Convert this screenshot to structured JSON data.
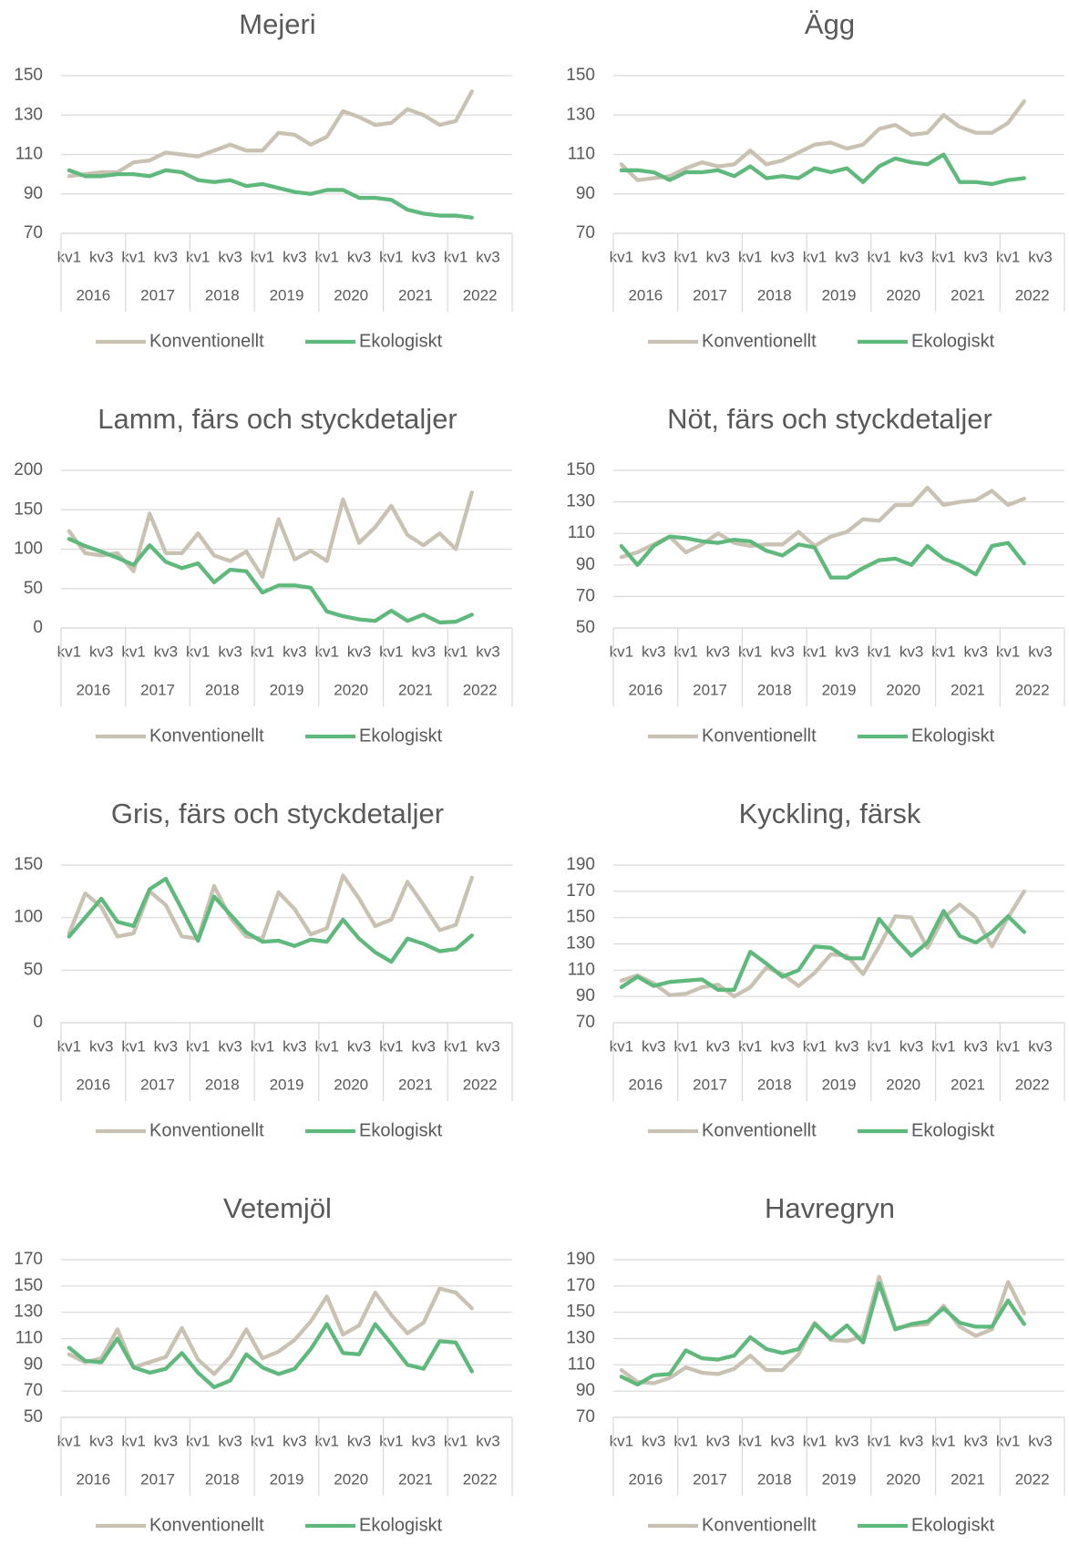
{
  "chart_data": [
    {
      "type": "line",
      "title": "Mejeri",
      "legend": "bottom",
      "grid": true,
      "ylim": [
        70,
        150
      ],
      "yticks": [
        70,
        90,
        110,
        130,
        150
      ],
      "categories": [
        "kv1",
        null,
        "kv3",
        null,
        "kv1",
        null,
        "kv3",
        null,
        "kv1",
        null,
        "kv3",
        null,
        "kv1",
        null,
        "kv3",
        null,
        "kv1",
        null,
        "kv3",
        null,
        "kv1",
        null,
        "kv3",
        null,
        "kv1",
        null,
        "kv3",
        null
      ],
      "groups": [
        "2016",
        "2017",
        "2018",
        "2019",
        "2020",
        "2021",
        "2022"
      ],
      "series": [
        {
          "name": "Konventionellt",
          "color": "#c9c2b2",
          "values": [
            99,
            100,
            101,
            101,
            106,
            107,
            111,
            110,
            109,
            112,
            115,
            112,
            112,
            121,
            120,
            115,
            119,
            132,
            129,
            125,
            126,
            133,
            130,
            125,
            127,
            142,
            null,
            null
          ]
        },
        {
          "name": "Ekologiskt",
          "color": "#5fb97c",
          "values": [
            102,
            99,
            99,
            100,
            100,
            99,
            102,
            101,
            97,
            96,
            97,
            94,
            95,
            93,
            91,
            90,
            92,
            92,
            88,
            88,
            87,
            82,
            80,
            79,
            79,
            78,
            null,
            null
          ]
        }
      ]
    },
    {
      "type": "line",
      "title": "Ägg",
      "legend": "bottom",
      "grid": true,
      "ylim": [
        70,
        150
      ],
      "yticks": [
        70,
        90,
        110,
        130,
        150
      ],
      "categories": [
        "kv1",
        null,
        "kv3",
        null,
        "kv1",
        null,
        "kv3",
        null,
        "kv1",
        null,
        "kv3",
        null,
        "kv1",
        null,
        "kv3",
        null,
        "kv1",
        null,
        "kv3",
        null,
        "kv1",
        null,
        "kv3",
        null,
        "kv1",
        null,
        "kv3",
        null
      ],
      "groups": [
        "2016",
        "2017",
        "2018",
        "2019",
        "2020",
        "2021",
        "2022"
      ],
      "series": [
        {
          "name": "Konventionellt",
          "color": "#c9c2b2",
          "values": [
            105,
            97,
            98,
            99,
            103,
            106,
            104,
            105,
            112,
            105,
            107,
            111,
            115,
            116,
            113,
            115,
            123,
            125,
            120,
            121,
            130,
            124,
            121,
            121,
            126,
            137,
            null,
            null
          ]
        },
        {
          "name": "Ekologiskt",
          "color": "#5fb97c",
          "values": [
            102,
            102,
            101,
            97,
            101,
            101,
            102,
            99,
            104,
            98,
            99,
            98,
            103,
            101,
            103,
            96,
            104,
            108,
            106,
            105,
            110,
            96,
            96,
            95,
            97,
            98,
            null,
            null
          ]
        }
      ]
    },
    {
      "type": "line",
      "title": "Lamm, färs och styckdetaljer",
      "legend": "bottom",
      "grid": true,
      "ylim": [
        0,
        200
      ],
      "yticks": [
        0,
        50,
        100,
        150,
        200
      ],
      "categories": [
        "kv1",
        null,
        "kv3",
        null,
        "kv1",
        null,
        "kv3",
        null,
        "kv1",
        null,
        "kv3",
        null,
        "kv1",
        null,
        "kv3",
        null,
        "kv1",
        null,
        "kv3",
        null,
        "kv1",
        null,
        "kv3",
        null,
        "kv1",
        null,
        "kv3",
        null
      ],
      "groups": [
        "2016",
        "2017",
        "2018",
        "2019",
        "2020",
        "2021",
        "2022"
      ],
      "series": [
        {
          "name": "Konventionellt",
          "color": "#c9c2b2",
          "values": [
            123,
            95,
            92,
            95,
            72,
            145,
            95,
            95,
            120,
            92,
            85,
            97,
            65,
            138,
            87,
            98,
            85,
            163,
            108,
            128,
            155,
            118,
            105,
            120,
            100,
            172,
            null,
            null
          ]
        },
        {
          "name": "Ekologiskt",
          "color": "#5fb97c",
          "values": [
            113,
            104,
            97,
            89,
            80,
            105,
            84,
            76,
            82,
            58,
            74,
            72,
            45,
            54,
            54,
            51,
            21,
            15,
            11,
            9,
            22,
            9,
            17,
            7,
            8,
            17,
            null,
            null
          ]
        }
      ]
    },
    {
      "type": "line",
      "title": "Nöt, färs och styckdetaljer",
      "legend": "bottom",
      "grid": true,
      "ylim": [
        50,
        150
      ],
      "yticks": [
        50,
        70,
        90,
        110,
        130,
        150
      ],
      "categories": [
        "kv1",
        null,
        "kv3",
        null,
        "kv1",
        null,
        "kv3",
        null,
        "kv1",
        null,
        "kv3",
        null,
        "kv1",
        null,
        "kv3",
        null,
        "kv1",
        null,
        "kv3",
        null,
        "kv1",
        null,
        "kv3",
        null,
        "kv1",
        null,
        "kv3",
        null
      ],
      "groups": [
        "2016",
        "2017",
        "2018",
        "2019",
        "2020",
        "2021",
        "2022"
      ],
      "series": [
        {
          "name": "Konventionellt",
          "color": "#c9c2b2",
          "values": [
            95,
            98,
            103,
            108,
            98,
            103,
            110,
            104,
            102,
            103,
            103,
            111,
            102,
            108,
            111,
            119,
            118,
            128,
            128,
            139,
            128,
            130,
            131,
            137,
            128,
            132,
            null,
            null
          ]
        },
        {
          "name": "Ekologiskt",
          "color": "#5fb97c",
          "values": [
            102,
            90,
            102,
            108,
            107,
            105,
            104,
            106,
            105,
            99,
            96,
            103,
            101,
            82,
            82,
            88,
            93,
            94,
            90,
            102,
            94,
            90,
            84,
            102,
            104,
            91,
            null,
            null
          ]
        }
      ]
    },
    {
      "type": "line",
      "title": "Gris, färs och styckdetaljer",
      "legend": "bottom",
      "grid": true,
      "ylim": [
        0,
        150
      ],
      "yticks": [
        0,
        50,
        100,
        150
      ],
      "categories": [
        "kv1",
        null,
        "kv3",
        null,
        "kv1",
        null,
        "kv3",
        null,
        "kv1",
        null,
        "kv3",
        null,
        "kv1",
        null,
        "kv3",
        null,
        "kv1",
        null,
        "kv3",
        null,
        "kv1",
        null,
        "kv3",
        null,
        "kv1",
        null,
        "kv3",
        null
      ],
      "groups": [
        "2016",
        "2017",
        "2018",
        "2019",
        "2020",
        "2021",
        "2022"
      ],
      "series": [
        {
          "name": "Konventionellt",
          "color": "#c9c2b2",
          "values": [
            85,
            123,
            110,
            82,
            85,
            125,
            112,
            82,
            80,
            130,
            100,
            82,
            80,
            124,
            108,
            84,
            90,
            140,
            118,
            92,
            98,
            134,
            112,
            88,
            93,
            138,
            null,
            null
          ]
        },
        {
          "name": "Ekologiskt",
          "color": "#5fb97c",
          "values": [
            82,
            100,
            118,
            96,
            92,
            127,
            137,
            108,
            78,
            120,
            103,
            86,
            77,
            78,
            73,
            79,
            77,
            98,
            80,
            67,
            58,
            80,
            75,
            68,
            70,
            83,
            null,
            null
          ]
        }
      ]
    },
    {
      "type": "line",
      "title": "Kyckling, färsk",
      "legend": "bottom",
      "grid": true,
      "ylim": [
        70,
        190
      ],
      "yticks": [
        70,
        90,
        110,
        130,
        150,
        170,
        190
      ],
      "categories": [
        "kv1",
        null,
        "kv3",
        null,
        "kv1",
        null,
        "kv3",
        null,
        "kv1",
        null,
        "kv3",
        null,
        "kv1",
        null,
        "kv3",
        null,
        "kv1",
        null,
        "kv3",
        null,
        "kv1",
        null,
        "kv3",
        null,
        "kv1",
        null,
        "kv3",
        null
      ],
      "groups": [
        "2016",
        "2017",
        "2018",
        "2019",
        "2020",
        "2021",
        "2022"
      ],
      "series": [
        {
          "name": "Konventionellt",
          "color": "#c9c2b2",
          "values": [
            102,
            106,
            100,
            91,
            92,
            97,
            99,
            90,
            97,
            112,
            107,
            98,
            108,
            122,
            121,
            107,
            128,
            151,
            150,
            127,
            150,
            160,
            150,
            128,
            150,
            170,
            null,
            null
          ]
        },
        {
          "name": "Ekologiskt",
          "color": "#5fb97c",
          "values": [
            97,
            105,
            98,
            101,
            102,
            103,
            95,
            95,
            124,
            115,
            105,
            110,
            128,
            127,
            119,
            119,
            149,
            134,
            121,
            131,
            155,
            136,
            131,
            139,
            151,
            139,
            null,
            null
          ]
        }
      ]
    },
    {
      "type": "line",
      "title": "Vetemjöl",
      "legend": "bottom",
      "grid": true,
      "ylim": [
        50,
        170
      ],
      "yticks": [
        50,
        70,
        90,
        110,
        130,
        150,
        170
      ],
      "categories": [
        "kv1",
        null,
        "kv3",
        null,
        "kv1",
        null,
        "kv3",
        null,
        "kv1",
        null,
        "kv3",
        null,
        "kv1",
        null,
        "kv3",
        null,
        "kv1",
        null,
        "kv3",
        null,
        "kv1",
        null,
        "kv3",
        null,
        "kv1",
        null,
        "kv3",
        null
      ],
      "groups": [
        "2016",
        "2017",
        "2018",
        "2019",
        "2020",
        "2021",
        "2022"
      ],
      "series": [
        {
          "name": "Konventionellt",
          "color": "#c9c2b2",
          "values": [
            98,
            92,
            95,
            117,
            88,
            92,
            96,
            118,
            94,
            83,
            96,
            117,
            95,
            100,
            109,
            123,
            142,
            113,
            120,
            145,
            128,
            114,
            122,
            148,
            145,
            133,
            null,
            null
          ]
        },
        {
          "name": "Ekologiskt",
          "color": "#5fb97c",
          "values": [
            103,
            93,
            92,
            110,
            88,
            84,
            87,
            99,
            84,
            73,
            78,
            98,
            88,
            83,
            87,
            102,
            121,
            99,
            98,
            121,
            106,
            90,
            87,
            108,
            107,
            85,
            null,
            null
          ]
        }
      ]
    },
    {
      "type": "line",
      "title": "Havregryn",
      "legend": "bottom",
      "grid": true,
      "ylim": [
        70,
        190
      ],
      "yticks": [
        70,
        90,
        110,
        130,
        150,
        170,
        190
      ],
      "categories": [
        "kv1",
        null,
        "kv3",
        null,
        "kv1",
        null,
        "kv3",
        null,
        "kv1",
        null,
        "kv3",
        null,
        "kv1",
        null,
        "kv3",
        null,
        "kv1",
        null,
        "kv3",
        null,
        "kv1",
        null,
        "kv3",
        null,
        "kv1",
        null,
        "kv3",
        null
      ],
      "groups": [
        "2016",
        "2017",
        "2018",
        "2019",
        "2020",
        "2021",
        "2022"
      ],
      "series": [
        {
          "name": "Konventionellt",
          "color": "#c9c2b2",
          "values": [
            106,
            97,
            96,
            100,
            108,
            104,
            103,
            107,
            117,
            106,
            106,
            118,
            142,
            129,
            128,
            132,
            177,
            138,
            140,
            141,
            155,
            139,
            132,
            137,
            173,
            149,
            null,
            null
          ]
        },
        {
          "name": "Ekologiskt",
          "color": "#5fb97c",
          "values": [
            101,
            95,
            102,
            103,
            121,
            115,
            114,
            117,
            131,
            122,
            119,
            122,
            141,
            130,
            140,
            127,
            172,
            137,
            141,
            143,
            153,
            142,
            139,
            139,
            159,
            141,
            null,
            null
          ]
        }
      ]
    }
  ]
}
